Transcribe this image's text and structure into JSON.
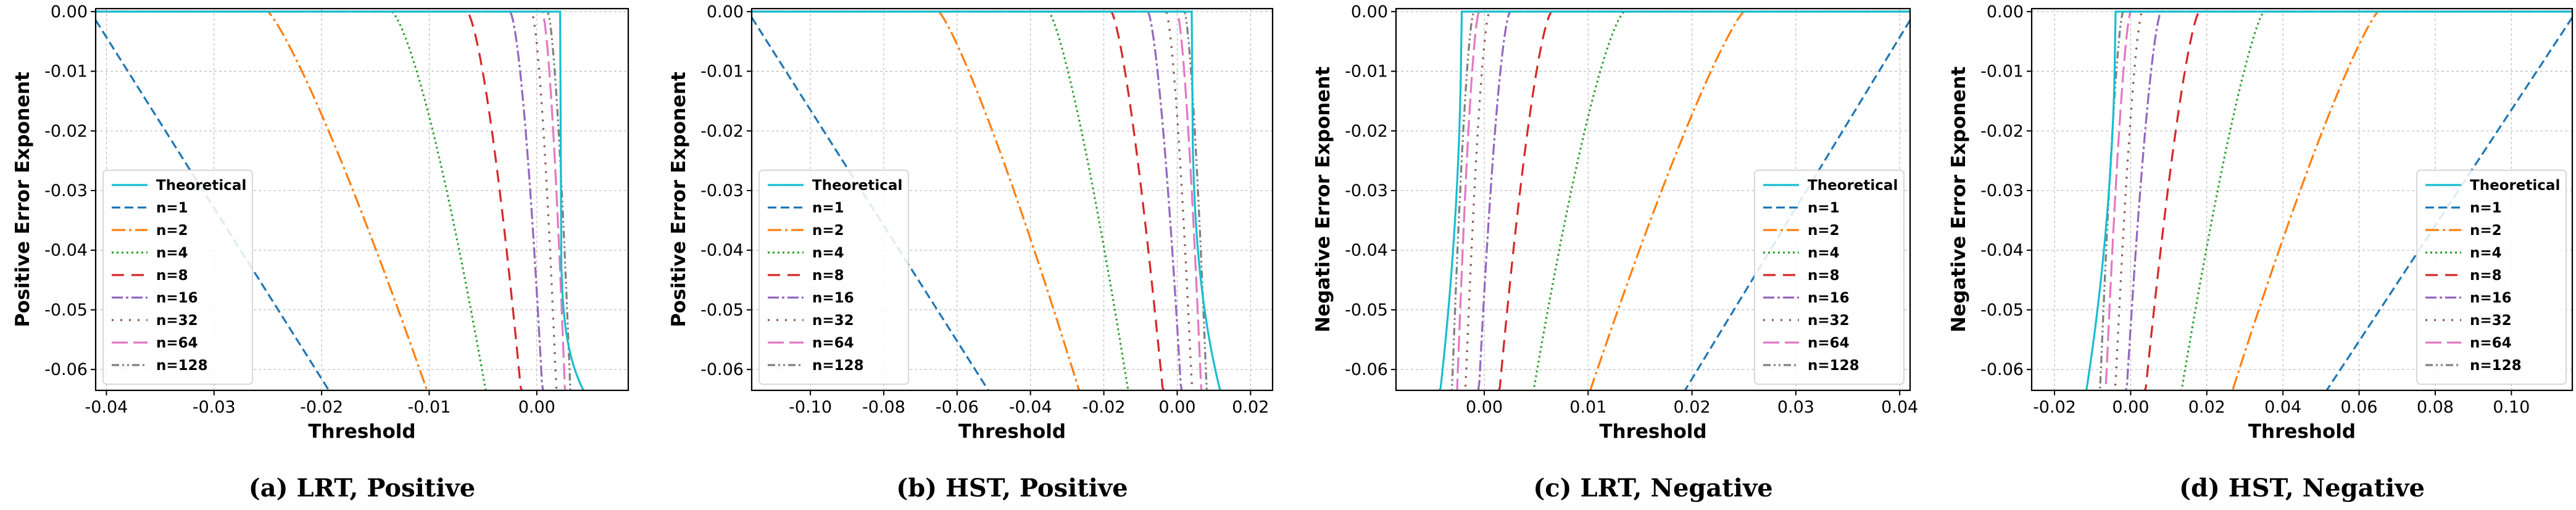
{
  "chart_data": [
    {
      "type": "line",
      "caption": "(a) LRT, Positive",
      "xlabel": "Threshold",
      "ylabel": "Positive Error Exponent",
      "xlim": [
        -0.041,
        0.0085
      ],
      "ylim": [
        -0.0635,
        0.0005
      ],
      "xticks": [
        -0.04,
        -0.03,
        -0.02,
        -0.01,
        0.0
      ],
      "xtick_labels": [
        "-0.04",
        "-0.03",
        "-0.02",
        "-0.01",
        "0.00"
      ],
      "yticks": [
        0.0,
        -0.01,
        -0.02,
        -0.03,
        -0.04,
        -0.05,
        -0.06
      ],
      "ytick_labels": [
        "0.00",
        "-0.01",
        "-0.02",
        "-0.03",
        "-0.04",
        "-0.05",
        "-0.06"
      ],
      "grid": true,
      "legend_position": "lower-left",
      "series": [
        {
          "name": "Theoretical",
          "color": "#17becf",
          "dash": "solid",
          "flat": 0.0022,
          "cross": 0.0042,
          "shape": 0.12
        },
        {
          "name": "n=1",
          "color": "#1f77b4",
          "dash": "dashed",
          "flat": -0.0415,
          "cross": -0.0195,
          "shape": 1.0
        },
        {
          "name": "n=2",
          "color": "#ff7f0e",
          "dash": "dashdot",
          "flat": -0.025,
          "cross": -0.0103,
          "shape": 1.2
        },
        {
          "name": "n=4",
          "color": "#2ca02c",
          "dash": "dotted",
          "flat": -0.0135,
          "cross": -0.0048,
          "shape": 1.4
        },
        {
          "name": "n=8",
          "color": "#d62728",
          "dash": "loosedash",
          "flat": -0.0065,
          "cross": -0.0015,
          "shape": 1.5
        },
        {
          "name": "n=16",
          "color": "#9467bd",
          "dash": "dashdot2",
          "flat": -0.0025,
          "cross": 0.0005,
          "shape": 1.6
        },
        {
          "name": "n=32",
          "color": "#8c564b",
          "dash": "sparsedot",
          "flat": -0.0005,
          "cross": 0.0018,
          "shape": 1.6
        },
        {
          "name": "n=64",
          "color": "#e377c2",
          "dash": "longdash",
          "flat": 0.0005,
          "cross": 0.0026,
          "shape": 1.6
        },
        {
          "name": "n=128",
          "color": "#7f7f7f",
          "dash": "dashdotdot",
          "flat": 0.001,
          "cross": 0.0031,
          "shape": 1.6
        }
      ]
    },
    {
      "type": "line",
      "caption": "(b) HST, Positive",
      "xlabel": "Threshold",
      "ylabel": "Positive Error Exponent",
      "xlim": [
        -0.116,
        0.026
      ],
      "ylim": [
        -0.0635,
        0.0005
      ],
      "xticks": [
        -0.1,
        -0.08,
        -0.06,
        -0.04,
        -0.02,
        0.0,
        0.02
      ],
      "xtick_labels": [
        "-0.10",
        "-0.08",
        "-0.06",
        "-0.04",
        "-0.02",
        "0.00",
        "0.02"
      ],
      "yticks": [
        0.0,
        -0.01,
        -0.02,
        -0.03,
        -0.04,
        -0.05,
        -0.06
      ],
      "ytick_labels": [
        "0.00",
        "-0.01",
        "-0.02",
        "-0.03",
        "-0.04",
        "-0.05",
        "-0.06"
      ],
      "grid": true,
      "legend_position": "lower-left",
      "series": [
        {
          "name": "Theoretical",
          "color": "#17becf",
          "dash": "solid",
          "flat": 0.004,
          "cross": 0.0115,
          "shape": 0.3
        },
        {
          "name": "n=1",
          "color": "#1f77b4",
          "dash": "dashed",
          "flat": -0.117,
          "cross": -0.052,
          "shape": 1.0
        },
        {
          "name": "n=2",
          "color": "#ff7f0e",
          "dash": "dashdot",
          "flat": -0.065,
          "cross": -0.027,
          "shape": 1.2
        },
        {
          "name": "n=4",
          "color": "#2ca02c",
          "dash": "dotted",
          "flat": -0.035,
          "cross": -0.0135,
          "shape": 1.3
        },
        {
          "name": "n=8",
          "color": "#d62728",
          "dash": "loosedash",
          "flat": -0.018,
          "cross": -0.004,
          "shape": 1.4
        },
        {
          "name": "n=16",
          "color": "#9467bd",
          "dash": "dashdot2",
          "flat": -0.008,
          "cross": 0.001,
          "shape": 1.5
        },
        {
          "name": "n=32",
          "color": "#8c564b",
          "dash": "sparsedot",
          "flat": -0.003,
          "cross": 0.004,
          "shape": 1.5
        },
        {
          "name": "n=64",
          "color": "#e377c2",
          "dash": "longdash",
          "flat": 0.0,
          "cross": 0.0065,
          "shape": 1.5
        },
        {
          "name": "n=128",
          "color": "#7f7f7f",
          "dash": "dashdotdot",
          "flat": 0.002,
          "cross": 0.008,
          "shape": 1.5
        }
      ]
    },
    {
      "type": "line",
      "caption": "(c) LRT, Negative",
      "xlabel": "Threshold",
      "ylabel": "Negative Error Exponent",
      "xlim": [
        -0.0085,
        0.041
      ],
      "ylim": [
        -0.0635,
        0.0005
      ],
      "xticks": [
        0.0,
        0.01,
        0.02,
        0.03,
        0.04
      ],
      "xtick_labels": [
        "0.00",
        "0.01",
        "0.02",
        "0.03",
        "0.04"
      ],
      "yticks": [
        0.0,
        -0.01,
        -0.02,
        -0.03,
        -0.04,
        -0.05,
        -0.06
      ],
      "ytick_labels": [
        "0.00",
        "-0.01",
        "-0.02",
        "-0.03",
        "-0.04",
        "-0.05",
        "-0.06"
      ],
      "grid": true,
      "legend_position": "lower-right",
      "series": [
        {
          "name": "Theoretical",
          "color": "#17becf",
          "dash": "solid",
          "flat": -0.0022,
          "cross": -0.0042,
          "shape": 0.5
        },
        {
          "name": "n=1",
          "color": "#1f77b4",
          "dash": "dashed",
          "flat": 0.0415,
          "cross": 0.0195,
          "shape": 1.0
        },
        {
          "name": "n=2",
          "color": "#ff7f0e",
          "dash": "dashdot",
          "flat": 0.025,
          "cross": 0.0103,
          "shape": 1.2
        },
        {
          "name": "n=4",
          "color": "#2ca02c",
          "dash": "dotted",
          "flat": 0.0135,
          "cross": 0.0048,
          "shape": 1.4
        },
        {
          "name": "n=8",
          "color": "#d62728",
          "dash": "loosedash",
          "flat": 0.0065,
          "cross": 0.0015,
          "shape": 1.5
        },
        {
          "name": "n=16",
          "color": "#9467bd",
          "dash": "dashdot2",
          "flat": 0.0025,
          "cross": -0.0005,
          "shape": 1.6
        },
        {
          "name": "n=32",
          "color": "#8c564b",
          "dash": "sparsedot",
          "flat": 0.0005,
          "cross": -0.0018,
          "shape": 1.6
        },
        {
          "name": "n=64",
          "color": "#e377c2",
          "dash": "longdash",
          "flat": -0.0005,
          "cross": -0.0026,
          "shape": 1.6
        },
        {
          "name": "n=128",
          "color": "#7f7f7f",
          "dash": "dashdotdot",
          "flat": -0.001,
          "cross": -0.0031,
          "shape": 1.6
        }
      ]
    },
    {
      "type": "line",
      "caption": "(d) HST, Negative",
      "xlabel": "Threshold",
      "ylabel": "Negative Error Exponent",
      "xlim": [
        -0.026,
        0.116
      ],
      "ylim": [
        -0.0635,
        0.0005
      ],
      "xticks": [
        -0.02,
        0.0,
        0.02,
        0.04,
        0.06,
        0.08,
        0.1
      ],
      "xtick_labels": [
        "-0.02",
        "0.00",
        "0.02",
        "0.04",
        "0.06",
        "0.08",
        "0.10"
      ],
      "yticks": [
        0.0,
        -0.01,
        -0.02,
        -0.03,
        -0.04,
        -0.05,
        -0.06
      ],
      "ytick_labels": [
        "0.00",
        "-0.01",
        "-0.02",
        "-0.03",
        "-0.04",
        "-0.05",
        "-0.06"
      ],
      "grid": true,
      "legend_position": "lower-right",
      "series": [
        {
          "name": "Theoretical",
          "color": "#17becf",
          "dash": "solid",
          "flat": -0.004,
          "cross": -0.0115,
          "shape": 0.5
        },
        {
          "name": "n=1",
          "color": "#1f77b4",
          "dash": "dashed",
          "flat": 0.117,
          "cross": 0.052,
          "shape": 1.0
        },
        {
          "name": "n=2",
          "color": "#ff7f0e",
          "dash": "dashdot",
          "flat": 0.065,
          "cross": 0.027,
          "shape": 1.2
        },
        {
          "name": "n=4",
          "color": "#2ca02c",
          "dash": "dotted",
          "flat": 0.035,
          "cross": 0.0135,
          "shape": 1.3
        },
        {
          "name": "n=8",
          "color": "#d62728",
          "dash": "loosedash",
          "flat": 0.018,
          "cross": 0.004,
          "shape": 1.4
        },
        {
          "name": "n=16",
          "color": "#9467bd",
          "dash": "dashdot2",
          "flat": 0.008,
          "cross": -0.001,
          "shape": 1.5
        },
        {
          "name": "n=32",
          "color": "#8c564b",
          "dash": "sparsedot",
          "flat": 0.003,
          "cross": -0.004,
          "shape": 1.5
        },
        {
          "name": "n=64",
          "color": "#e377c2",
          "dash": "longdash",
          "flat": 0.0,
          "cross": -0.0065,
          "shape": 1.5
        },
        {
          "name": "n=128",
          "color": "#7f7f7f",
          "dash": "dashdotdot",
          "flat": -0.002,
          "cross": -0.008,
          "shape": 1.5
        }
      ]
    }
  ]
}
